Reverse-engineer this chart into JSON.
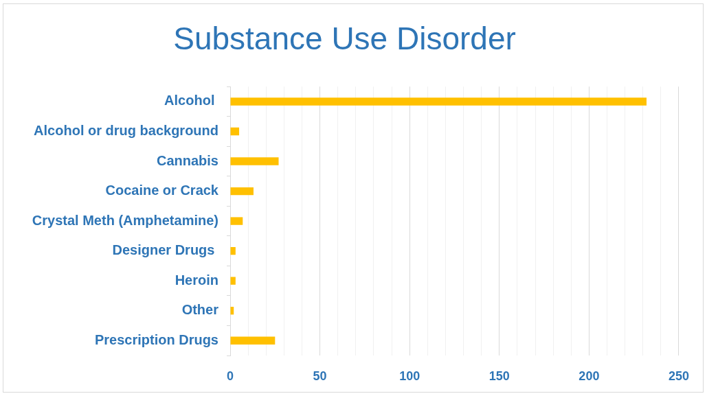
{
  "chart_data": {
    "type": "bar",
    "orientation": "horizontal",
    "title": "Substance Use Disorder",
    "categories": [
      "Alcohol ",
      "Alcohol or drug background",
      "Cannabis",
      "Cocaine or Crack",
      "Crystal Meth (Amphetamine)",
      "Designer Drugs ",
      "Heroin",
      "Other",
      "Prescription Drugs"
    ],
    "values": [
      232,
      5,
      27,
      13,
      7,
      3,
      3,
      2,
      25
    ],
    "color": "#ffc000",
    "xlim": [
      0,
      250
    ],
    "xticks": [
      0,
      {
        "value": 10,
        "label": null
      },
      {
        "value": 20,
        "label": null
      },
      {
        "value": 30,
        "label": null
      },
      {
        "value": 40,
        "label": null
      },
      50,
      {
        "value": 60,
        "label": null
      },
      {
        "value": 70,
        "label": null
      },
      {
        "value": 80,
        "label": null
      },
      {
        "value": 90,
        "label": null
      },
      100,
      {
        "value": 110,
        "label": null
      },
      {
        "value": 120,
        "label": null
      },
      {
        "value": 130,
        "label": null
      },
      {
        "value": 140,
        "label": null
      },
      150,
      {
        "value": 160,
        "label": null
      },
      {
        "value": 170,
        "label": null
      },
      {
        "value": 180,
        "label": null
      },
      {
        "value": 190,
        "label": null
      },
      200,
      {
        "value": 210,
        "label": null
      },
      {
        "value": 220,
        "label": null
      },
      {
        "value": 230,
        "label": null
      },
      {
        "value": 240,
        "label": null
      },
      250
    ],
    "grid": "x"
  }
}
